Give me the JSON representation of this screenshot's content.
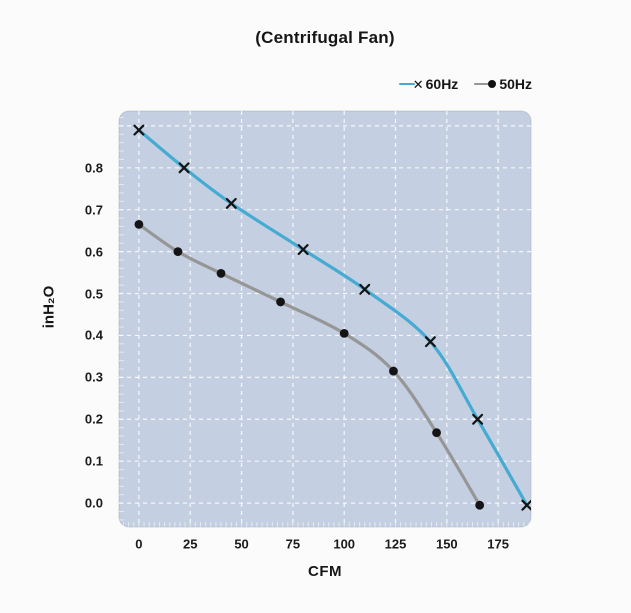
{
  "chart_data": {
    "type": "line",
    "title": "(Centrifugal Fan)",
    "xlabel": "CFM",
    "ylabel": "inH₂O",
    "x_ticks": [
      0,
      25,
      50,
      75,
      100,
      125,
      150,
      175
    ],
    "y_ticks": [
      0.0,
      0.1,
      0.2,
      0.3,
      0.4,
      0.5,
      0.6,
      0.7,
      0.8
    ],
    "xlim": [
      -9.7,
      191
    ],
    "ylim": [
      -0.057,
      0.9355
    ],
    "grid": true,
    "grid_style": "dashed-white",
    "legend_position": "top-right",
    "plot_bg": "#c4cfe1",
    "grid_color": "#ffffff",
    "marker_color": "#141414",
    "series": [
      {
        "name": "60Hz",
        "marker": "x",
        "line_color": "#45abd3",
        "points": [
          [
            0,
            0.89
          ],
          [
            22,
            0.8
          ],
          [
            45,
            0.715
          ],
          [
            80,
            0.605
          ],
          [
            110,
            0.51
          ],
          [
            142,
            0.385
          ],
          [
            165,
            0.2
          ],
          [
            189,
            -0.005
          ]
        ]
      },
      {
        "name": "50Hz",
        "marker": "circle",
        "line_color": "#969696",
        "points": [
          [
            0,
            0.665
          ],
          [
            19,
            0.6
          ],
          [
            40,
            0.548
          ],
          [
            69,
            0.48
          ],
          [
            100,
            0.405
          ],
          [
            124,
            0.315
          ],
          [
            145,
            0.168
          ],
          [
            166,
            -0.005
          ]
        ]
      }
    ]
  }
}
